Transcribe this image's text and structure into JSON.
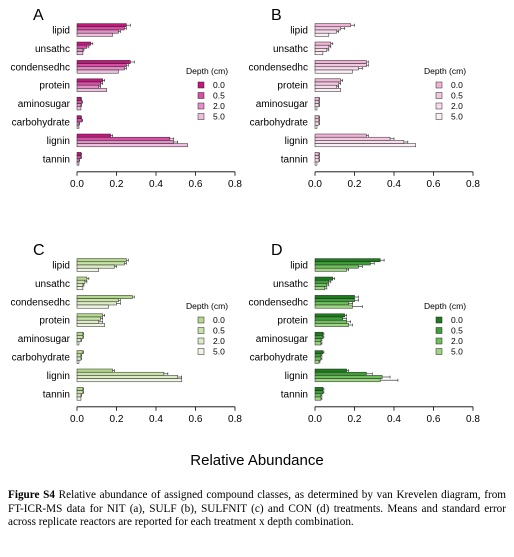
{
  "chart_data": [
    {
      "type": "bar",
      "panel_label": "A",
      "categories": [
        "lipid",
        "unsathc",
        "condensedhc",
        "protein",
        "aminosugar",
        "carbohydrate",
        "lignin",
        "tannin"
      ],
      "series": [
        {
          "name": "0.0",
          "values": [
            0.25,
            0.07,
            0.27,
            0.13,
            0.02,
            0.02,
            0.17,
            0.02
          ],
          "errors": [
            0.02,
            0.01,
            0.02,
            0.01,
            0.003,
            0.003,
            0.01,
            0.003
          ]
        },
        {
          "name": "0.5",
          "values": [
            0.24,
            0.05,
            0.25,
            0.12,
            0.025,
            0.025,
            0.47,
            0.02
          ],
          "errors": [
            0.01,
            0.01,
            0.01,
            0.01,
            0.003,
            0.003,
            0.02,
            0.003
          ]
        },
        {
          "name": "2.0",
          "values": [
            0.21,
            0.03,
            0.24,
            0.11,
            0.02,
            0.01,
            0.49,
            0.01
          ],
          "errors": [
            0.01,
            0.005,
            0.01,
            0.01,
            0.003,
            0.003,
            0.02,
            0.003
          ]
        },
        {
          "name": "5.0",
          "values": [
            0.18,
            0.03,
            0.21,
            0.15,
            0.02,
            0.01,
            0.56,
            0.01
          ],
          "errors": [
            0,
            0,
            0,
            0,
            0,
            0,
            0,
            0
          ]
        }
      ],
      "colors": [
        "#c2187d",
        "#d84fa6",
        "#e48fc6",
        "#f0bfe0"
      ],
      "xlim": [
        0,
        0.8
      ],
      "xticks": [
        "0.0",
        "0.2",
        "0.4",
        "0.6",
        "0.8"
      ],
      "legend_title": "Depth (cm)",
      "legend_position": "right"
    },
    {
      "type": "bar",
      "panel_label": "B",
      "categories": [
        "lipid",
        "unsathc",
        "condensedhc",
        "protein",
        "aminosugar",
        "carbohydrate",
        "lignin",
        "tannin"
      ],
      "series": [
        {
          "name": "0.0",
          "values": [
            0.18,
            0.08,
            0.26,
            0.13,
            0.02,
            0.02,
            0.26,
            0.02
          ],
          "errors": [
            0.02,
            0.01,
            0.01,
            0.01,
            0.003,
            0.003,
            0.01,
            0.003
          ]
        },
        {
          "name": "0.5",
          "values": [
            0.13,
            0.07,
            0.26,
            0.12,
            0.02,
            0.02,
            0.38,
            0.02
          ],
          "errors": [
            0.02,
            0.01,
            0.01,
            0.01,
            0.003,
            0.003,
            0.02,
            0.003
          ]
        },
        {
          "name": "2.0",
          "values": [
            0.11,
            0.06,
            0.22,
            0.11,
            0.02,
            0.02,
            0.45,
            0.02
          ],
          "errors": [
            0.01,
            0.01,
            0.02,
            0.01,
            0.003,
            0.003,
            0.02,
            0.003
          ]
        },
        {
          "name": "5.0",
          "values": [
            0.07,
            0.04,
            0.19,
            0.13,
            0.01,
            0.01,
            0.51,
            0.01
          ],
          "errors": [
            0,
            0,
            0,
            0,
            0,
            0,
            0,
            0
          ]
        }
      ],
      "colors": [
        "#f1b4d6",
        "#f5c8e2",
        "#f8dcec",
        "#fbeff6"
      ],
      "xlim": [
        0,
        0.8
      ],
      "xticks": [
        "0.0",
        "0.2",
        "0.4",
        "0.6",
        "0.8"
      ],
      "legend_title": "Depth (cm)",
      "legend_position": "right"
    },
    {
      "type": "bar",
      "panel_label": "C",
      "categories": [
        "lipid",
        "unsathc",
        "condensedhc",
        "protein",
        "aminosugar",
        "carbohydrate",
        "lignin",
        "tannin"
      ],
      "series": [
        {
          "name": "0.0",
          "values": [
            0.25,
            0.05,
            0.28,
            0.13,
            0.03,
            0.03,
            0.18,
            0.03
          ],
          "errors": [
            0.01,
            0.01,
            0.01,
            0.01,
            0.003,
            0.003,
            0.01,
            0.003
          ]
        },
        {
          "name": "0.5",
          "values": [
            0.24,
            0.04,
            0.21,
            0.12,
            0.03,
            0.02,
            0.44,
            0.03
          ],
          "errors": [
            0.01,
            0.01,
            0.01,
            0.01,
            0.003,
            0.003,
            0.02,
            0.003
          ]
        },
        {
          "name": "2.0",
          "values": [
            0.19,
            0.03,
            0.2,
            0.11,
            0.02,
            0.02,
            0.51,
            0.02
          ],
          "errors": [
            0.01,
            0.005,
            0.02,
            0.02,
            0.003,
            0.003,
            0.02,
            0.003
          ]
        },
        {
          "name": "5.0",
          "values": [
            0.11,
            0.03,
            0.16,
            0.14,
            0.01,
            0.01,
            0.53,
            0.02
          ],
          "errors": [
            0,
            0,
            0,
            0,
            0,
            0,
            0,
            0
          ]
        }
      ],
      "colors": [
        "#b5d98c",
        "#c9e4a8",
        "#dcedc6",
        "#eef6e2"
      ],
      "xlim": [
        0,
        0.8
      ],
      "xticks": [
        "0.0",
        "0.2",
        "0.4",
        "0.6",
        "0.8"
      ],
      "legend_title": "Depth (cm)",
      "legend_position": "right"
    },
    {
      "type": "bar",
      "panel_label": "D",
      "categories": [
        "lipid",
        "unsathc",
        "condensedhc",
        "protein",
        "aminosugar",
        "carbohydrate",
        "lignin",
        "tannin"
      ],
      "series": [
        {
          "name": "0.0",
          "values": [
            0.33,
            0.09,
            0.2,
            0.15,
            0.04,
            0.04,
            0.16,
            0.04
          ],
          "errors": [
            0.02,
            0.01,
            0.02,
            0.01,
            0.005,
            0.005,
            0.01,
            0.005
          ]
        },
        {
          "name": "0.5",
          "values": [
            0.28,
            0.07,
            0.2,
            0.14,
            0.04,
            0.03,
            0.26,
            0.04
          ],
          "errors": [
            0.02,
            0.01,
            0.02,
            0.02,
            0.005,
            0.005,
            0.03,
            0.005
          ]
        },
        {
          "name": "2.0",
          "values": [
            0.22,
            0.06,
            0.17,
            0.16,
            0.03,
            0.03,
            0.34,
            0.03
          ],
          "errors": [
            0.02,
            0.01,
            0.02,
            0.02,
            0.005,
            0.005,
            0.04,
            0.005
          ]
        },
        {
          "name": "5.0",
          "values": [
            0.16,
            0.05,
            0.19,
            0.17,
            0.03,
            0.02,
            0.33,
            0.03
          ],
          "errors": [
            0.01,
            0.01,
            0.05,
            0.02,
            0.005,
            0.005,
            0.09,
            0.005
          ]
        }
      ],
      "colors": [
        "#1e7b1e",
        "#3f9f3a",
        "#6fbf5f",
        "#9dd680"
      ],
      "xlim": [
        0,
        0.8
      ],
      "xticks": [
        "0.0",
        "0.2",
        "0.4",
        "0.6",
        "0.8"
      ],
      "legend_title": "Depth (cm)",
      "legend_position": "right"
    }
  ],
  "shared_xlabel": "Relative Abundance",
  "caption": {
    "label": "Figure S4",
    "text": " Relative abundance of assigned compound classes, as determined by van Krevelen diagram, from FT-ICR-MS data for NIT (a), SULF (b), SULFNIT (c) and CON (d) treatments. Means and standard error across replicate reactors are reported for each treatment x depth combination."
  }
}
